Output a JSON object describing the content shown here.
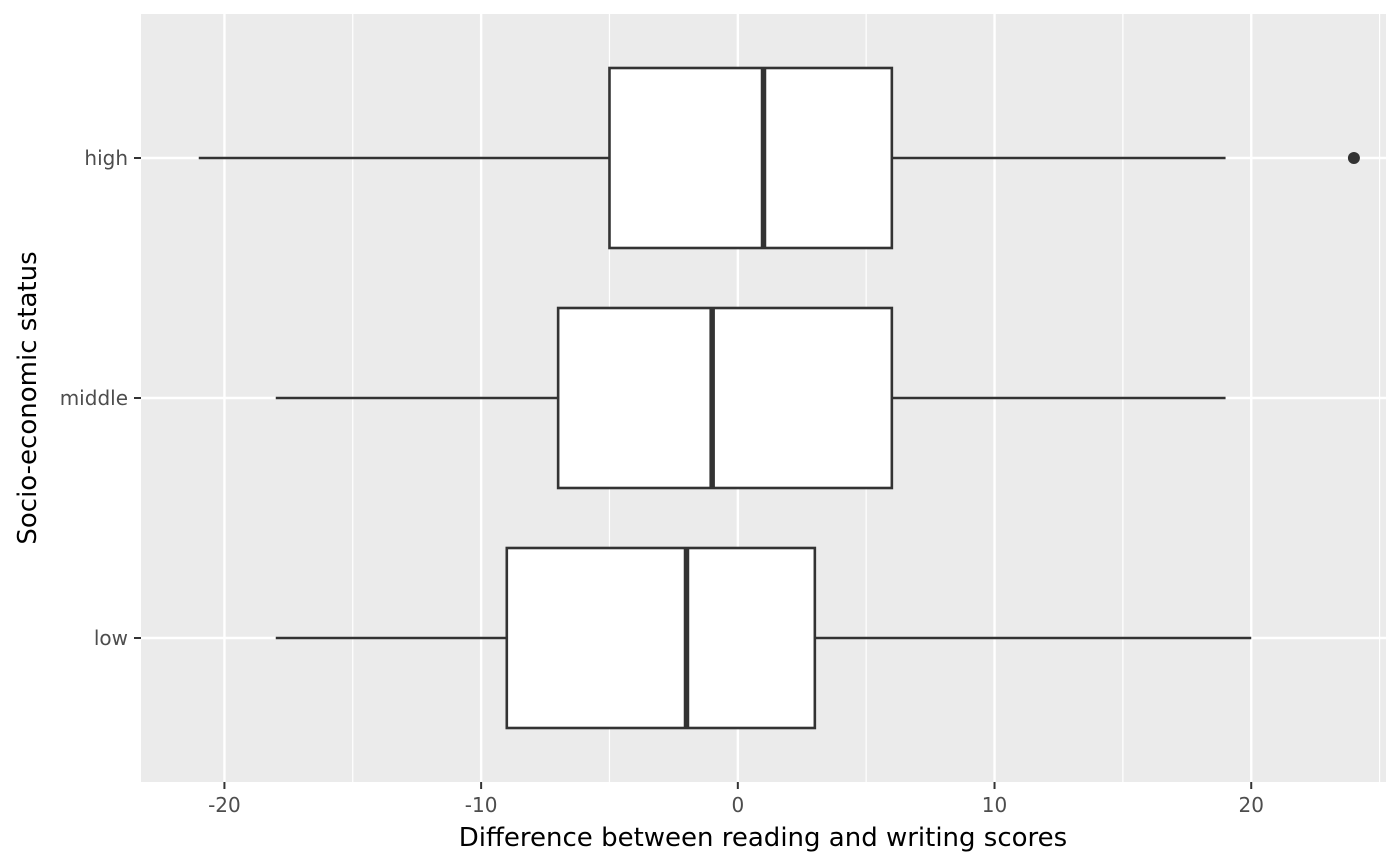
{
  "chart_data": {
    "type": "boxplot",
    "orientation": "horizontal",
    "xlabel": "Difference between reading and writing scores",
    "ylabel": "Socio-economic status",
    "xlim": [
      -23.25,
      25.25
    ],
    "x_ticks": [
      -20,
      -10,
      0,
      10,
      20
    ],
    "x_tick_labels": [
      "-20",
      "-10",
      "0",
      "10",
      "20"
    ],
    "x_minor_ticks": [
      -15,
      -5,
      5,
      15,
      25
    ],
    "categories": [
      "low",
      "middle",
      "high"
    ],
    "boxes": [
      {
        "category": "low",
        "whisker_low": -18,
        "q1": -9,
        "median": -2,
        "q3": 3,
        "whisker_high": 20,
        "outliers": []
      },
      {
        "category": "middle",
        "whisker_low": -18,
        "q1": -7,
        "median": -1,
        "q3": 6,
        "whisker_high": 19,
        "outliers": []
      },
      {
        "category": "high",
        "whisker_low": -21,
        "q1": -5,
        "median": 1,
        "q3": 6,
        "whisker_high": 19,
        "outliers": [
          24
        ]
      }
    ],
    "grid": true,
    "colors": {
      "panel": "#ebebeb",
      "grid": "#ffffff",
      "box_fill": "#ffffff",
      "box_stroke": "#333333"
    }
  }
}
